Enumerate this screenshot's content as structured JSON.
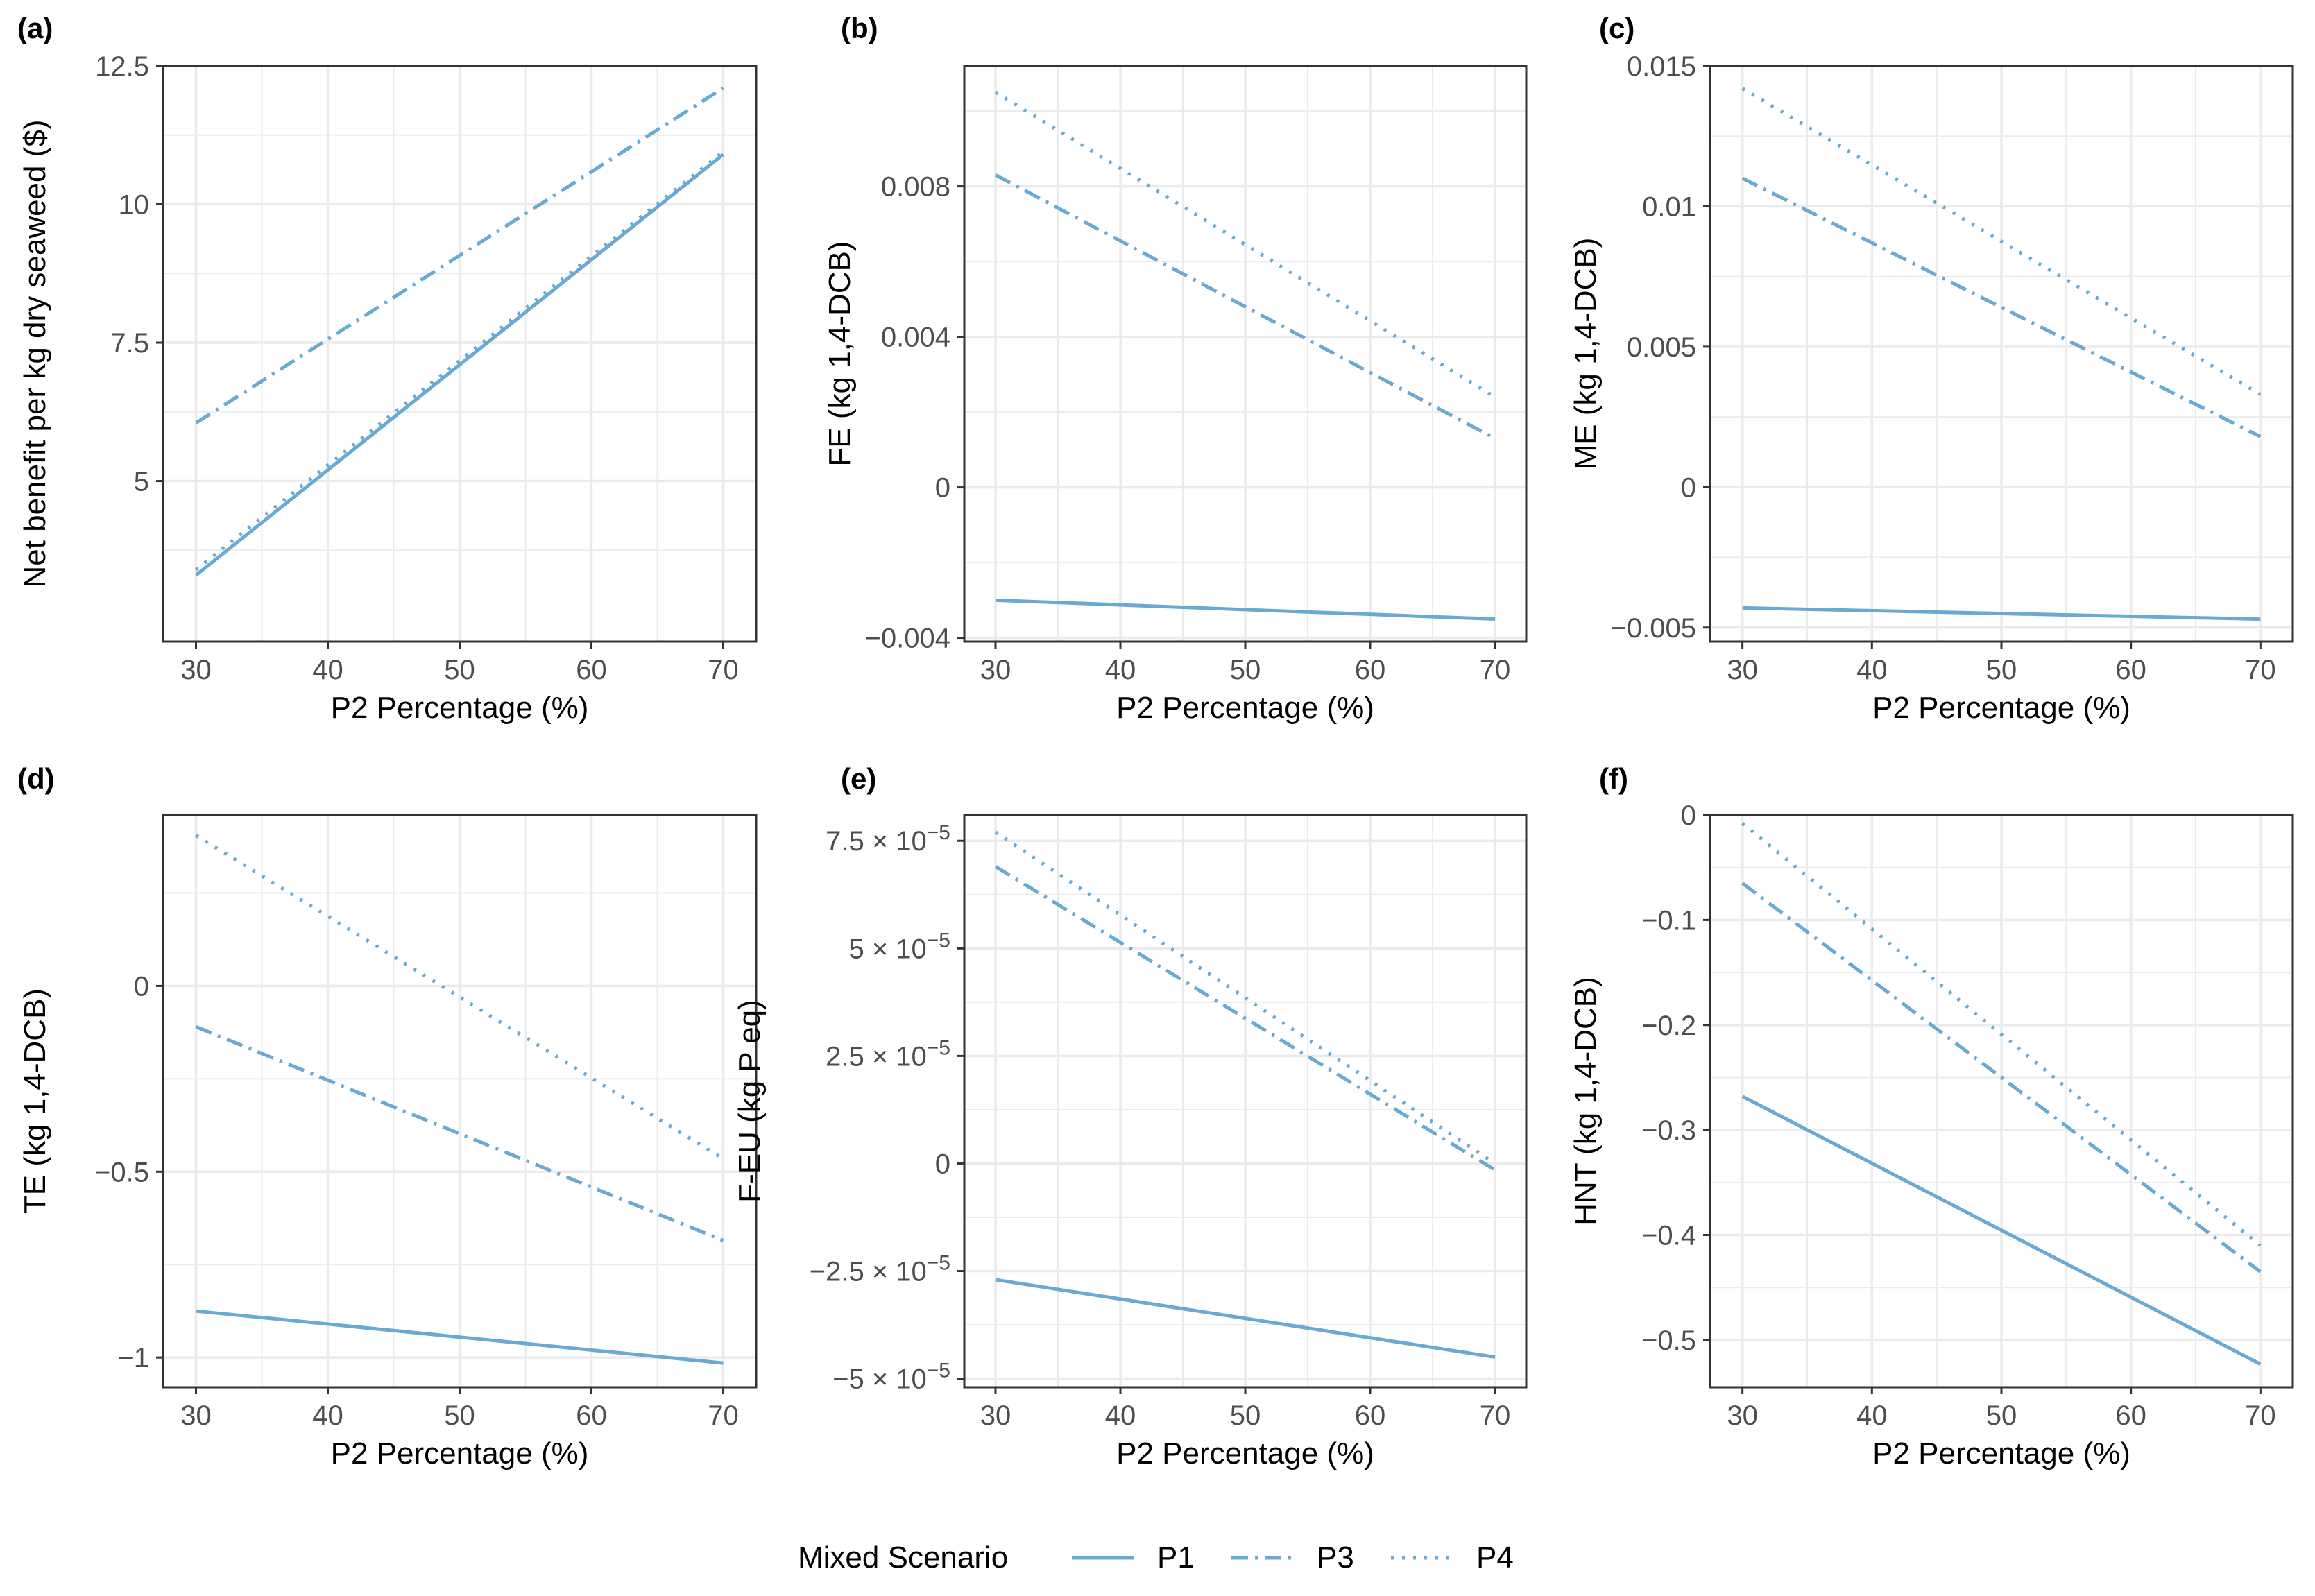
{
  "legend": {
    "title": "Mixed Scenario",
    "entries": [
      {
        "name": "P1",
        "dash": "solid"
      },
      {
        "name": "P3",
        "dash": "dashdot"
      },
      {
        "name": "P4",
        "dash": "dotted"
      }
    ]
  },
  "style": {
    "line_color": "#6aa9d2",
    "grid_color": "#ebebeb",
    "border_color": "#333333"
  },
  "chart_data": [
    {
      "tag": "(a)",
      "type": "line",
      "xlabel": "P2 Percentage (%)",
      "ylabel": "Net benefit per kg dry seaweed ($)",
      "xlim": [
        27.5,
        72.5
      ],
      "ylim": [
        2.1,
        12.5
      ],
      "xticks": [
        30,
        40,
        50,
        60,
        70
      ],
      "xtick_labels": [
        "30",
        "40",
        "50",
        "60",
        "70"
      ],
      "yticks": [
        5,
        7.5,
        10,
        12.5
      ],
      "ytick_labels": [
        "5",
        "7.5",
        "10",
        "12.5"
      ],
      "x": [
        30,
        70
      ],
      "series": [
        {
          "name": "P1",
          "values": [
            3.3,
            10.9
          ]
        },
        {
          "name": "P3",
          "values": [
            6.05,
            12.1
          ]
        },
        {
          "name": "P4",
          "values": [
            3.4,
            10.95
          ]
        }
      ]
    },
    {
      "tag": "(b)",
      "type": "line",
      "xlabel": "P2 Percentage (%)",
      "ylabel": "FE (kg 1,4-DCB)",
      "xlim": [
        27.5,
        72.5
      ],
      "ylim": [
        -0.0041,
        0.0112
      ],
      "xticks": [
        30,
        40,
        50,
        60,
        70
      ],
      "xtick_labels": [
        "30",
        "40",
        "50",
        "60",
        "70"
      ],
      "yticks": [
        -0.004,
        0,
        0.004,
        0.008
      ],
      "ytick_labels": [
        "-0.004",
        "0",
        "0.004",
        "0.008"
      ],
      "x": [
        30,
        70
      ],
      "series": [
        {
          "name": "P1",
          "values": [
            -0.003,
            -0.0035
          ]
        },
        {
          "name": "P3",
          "values": [
            0.0083,
            0.0013
          ]
        },
        {
          "name": "P4",
          "values": [
            0.0105,
            0.0024
          ]
        }
      ]
    },
    {
      "tag": "(c)",
      "type": "line",
      "xlabel": "P2 Percentage (%)",
      "ylabel": "ME (kg 1,4-DCB)",
      "xlim": [
        27.5,
        72.5
      ],
      "ylim": [
        -0.0055,
        0.015
      ],
      "xticks": [
        30,
        40,
        50,
        60,
        70
      ],
      "xtick_labels": [
        "30",
        "40",
        "50",
        "60",
        "70"
      ],
      "yticks": [
        -0.005,
        0,
        0.005,
        0.01,
        0.015
      ],
      "ytick_labels": [
        "-0.005",
        "0",
        "0.005",
        "0.01",
        "0.015"
      ],
      "x": [
        30,
        70
      ],
      "series": [
        {
          "name": "P1",
          "values": [
            -0.0043,
            -0.0047
          ]
        },
        {
          "name": "P3",
          "values": [
            0.011,
            0.0018
          ]
        },
        {
          "name": "P4",
          "values": [
            0.0142,
            0.0033
          ]
        }
      ]
    },
    {
      "tag": "(d)",
      "type": "line",
      "xlabel": "P2 Percentage (%)",
      "ylabel": "TE (kg 1,4-DCB)",
      "xlim": [
        27.5,
        72.5
      ],
      "ylim": [
        -1.08,
        0.46
      ],
      "xticks": [
        30,
        40,
        50,
        60,
        70
      ],
      "xtick_labels": [
        "30",
        "40",
        "50",
        "60",
        "70"
      ],
      "yticks": [
        -1,
        -0.5,
        0
      ],
      "ytick_labels": [
        "-1",
        "-0.5",
        "0"
      ],
      "x": [
        30,
        70
      ],
      "series": [
        {
          "name": "P1",
          "values": [
            -0.875,
            -1.015
          ]
        },
        {
          "name": "P3",
          "values": [
            -0.11,
            -0.685
          ]
        },
        {
          "name": "P4",
          "values": [
            0.405,
            -0.465
          ]
        }
      ]
    },
    {
      "tag": "(e)",
      "type": "line",
      "xlabel": "P2 Percentage (%)",
      "ylabel": "F-EU (kg P eq)",
      "xlim": [
        27.5,
        72.5
      ],
      "ylim": [
        -5.2e-05,
        8.1e-05
      ],
      "xticks": [
        30,
        40,
        50,
        60,
        70
      ],
      "xtick_labels": [
        "30",
        "40",
        "50",
        "60",
        "70"
      ],
      "yticks": [
        -5e-05,
        -2.5e-05,
        0,
        2.5e-05,
        5e-05,
        7.5e-05
      ],
      "ytick_labels": [
        {
          "mantissa": "−5 × 10",
          "exp": "−5"
        },
        {
          "mantissa": "−2.5 × 10",
          "exp": "−5"
        },
        {
          "mantissa": "0",
          "exp": ""
        },
        {
          "mantissa": "2.5 × 10",
          "exp": "−5"
        },
        {
          "mantissa": "5 × 10",
          "exp": "−5"
        },
        {
          "mantissa": "7.5 × 10",
          "exp": "−5"
        }
      ],
      "x": [
        30,
        70
      ],
      "series": [
        {
          "name": "P1",
          "values": [
            -2.7e-05,
            -4.5e-05
          ]
        },
        {
          "name": "P3",
          "values": [
            6.9e-05,
            -1.5e-06
          ]
        },
        {
          "name": "P4",
          "values": [
            7.7e-05,
            0.0
          ]
        }
      ]
    },
    {
      "tag": "(f)",
      "type": "line",
      "xlabel": "P2 Percentage (%)",
      "ylabel": "HNT (kg 1,4-DCB)",
      "xlim": [
        27.5,
        72.5
      ],
      "ylim": [
        -0.545,
        0.0
      ],
      "xticks": [
        30,
        40,
        50,
        60,
        70
      ],
      "xtick_labels": [
        "30",
        "40",
        "50",
        "60",
        "70"
      ],
      "yticks": [
        -0.5,
        -0.4,
        -0.3,
        -0.2,
        -0.1,
        0
      ],
      "ytick_labels": [
        "-0.5",
        "-0.4",
        "-0.3",
        "-0.2",
        "-0.1",
        "0"
      ],
      "x": [
        30,
        70
      ],
      "series": [
        {
          "name": "P1",
          "values": [
            -0.268,
            -0.523
          ]
        },
        {
          "name": "P3",
          "values": [
            -0.065,
            -0.435
          ]
        },
        {
          "name": "P4",
          "values": [
            -0.008,
            -0.41
          ]
        }
      ]
    }
  ]
}
